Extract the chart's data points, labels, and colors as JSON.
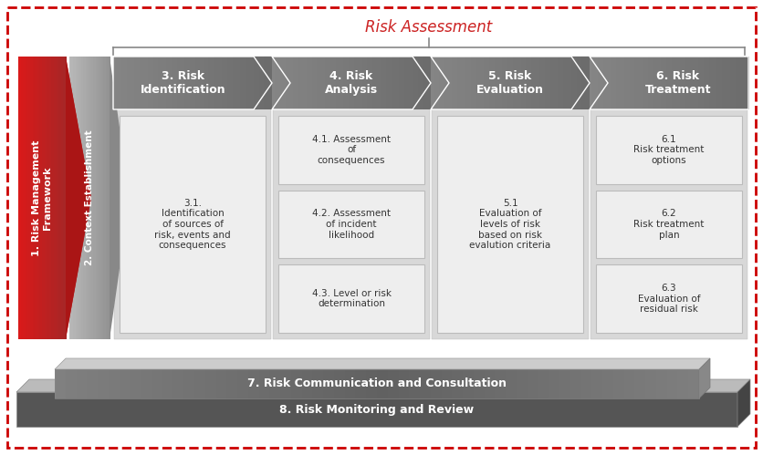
{
  "title": "Risk Assessment",
  "bg_color": "#ffffff",
  "border_color": "#cc0000",
  "red_color": "#cc2222",
  "red_dark": "#aa1111",
  "step1_label": "1. Risk Management\nFramework",
  "step2_label": "2. Context Establishment",
  "step3_label": "3. Risk\nIdentification",
  "step4_label": "4. Risk\nAnalysis",
  "step5_label": "5. Risk\nEvaluation",
  "step6_label": "6. Risk\nTreatment",
  "box31": "3.1.\nIdentification\nof sources of\nrisk, events and\nconsequences",
  "box41": "4.1. Assessment\nof\nconsequences",
  "box42": "4.2. Assessment\nof incident\nlikelihood",
  "box43": "4.3. Level or risk\ndetermination",
  "box51": "5.1\nEvaluation of\nlevels of risk\nbased on risk\nevalution criteria",
  "box61": "6.1\nRisk treatment\noptions",
  "box62": "6.2\nRisk treatment\nplan",
  "box63": "6.3\nEvaluation of\nresidual risk",
  "bar7": "7. Risk Communication and Consultation",
  "bar8": "8. Risk Monitoring and Review"
}
